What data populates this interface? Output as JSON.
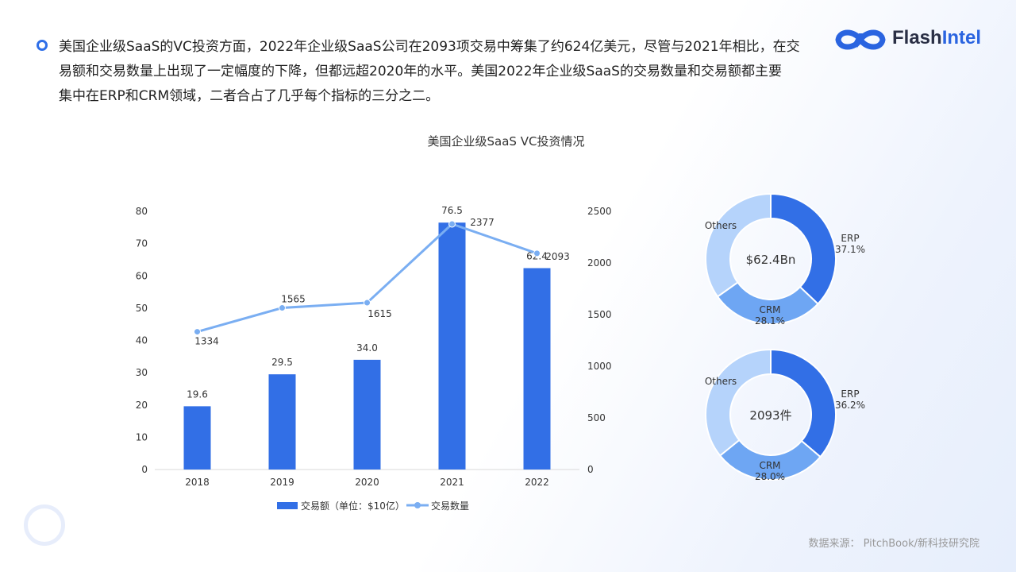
{
  "intro": {
    "line1": "美国企业级SaaS的VC投资方面，2022年企业级SaaS公司在2093项交易中筹集了约624亿美元，尽管与2021年相比，在交",
    "line2": "易额和交易数量上出现了一定幅度的下降，但都远超2020年的水平。美国2022年企业级SaaS的交易数量和交易额都主要",
    "line3": "集中在ERP和CRM领域，二者合占了几乎每个指标的三分之二。"
  },
  "logo": {
    "part1": "Flash",
    "part2": "Intel"
  },
  "source": "数据来源： PitchBook/新科技研究院",
  "colors": {
    "bar": "#326fe6",
    "line": "#7aaef2",
    "erp": "#326fe6",
    "crm": "#6ea6f3",
    "others": "#b5d3fb"
  },
  "chart_data": [
    {
      "type": "bar",
      "title": "美国企业级SaaS VC投资情况",
      "categories": [
        "2018",
        "2019",
        "2020",
        "2021",
        "2022"
      ],
      "series": [
        {
          "name": "交易额（单位：$10亿）",
          "type": "bar",
          "axis": "left",
          "values": [
            19.6,
            29.5,
            34.0,
            76.5,
            62.4
          ],
          "labels": [
            "19.6",
            "29.5",
            "34.0",
            "76.5",
            "62.4"
          ]
        },
        {
          "name": "交易数量",
          "type": "line",
          "axis": "right",
          "values": [
            1334,
            1565,
            1615,
            2377,
            2093
          ],
          "labels": [
            "1334",
            "1565",
            "1615",
            "2377",
            "2093"
          ]
        }
      ],
      "y_left": {
        "range": [
          0,
          80
        ],
        "ticks": [
          "0",
          "10",
          "20",
          "30",
          "40",
          "50",
          "60",
          "70",
          "80"
        ]
      },
      "y_right": {
        "range": [
          0,
          2500
        ],
        "ticks": [
          "0",
          "500",
          "1000",
          "1500",
          "2000",
          "2500"
        ]
      },
      "legend": "bottom",
      "grid": false
    },
    {
      "type": "pie",
      "donut": true,
      "center_label": "$62.4Bn",
      "slices": [
        {
          "name": "ERP",
          "value": 37.1,
          "label": "37.1%"
        },
        {
          "name": "CRM",
          "value": 28.1,
          "label": "28.1%"
        },
        {
          "name": "Others",
          "value": 34.8,
          "label": ""
        }
      ]
    },
    {
      "type": "pie",
      "donut": true,
      "center_label": "2093件",
      "slices": [
        {
          "name": "ERP",
          "value": 36.2,
          "label": "36.2%"
        },
        {
          "name": "CRM",
          "value": 28.0,
          "label": "28.0%"
        },
        {
          "name": "Others",
          "value": 35.8,
          "label": ""
        }
      ]
    }
  ]
}
